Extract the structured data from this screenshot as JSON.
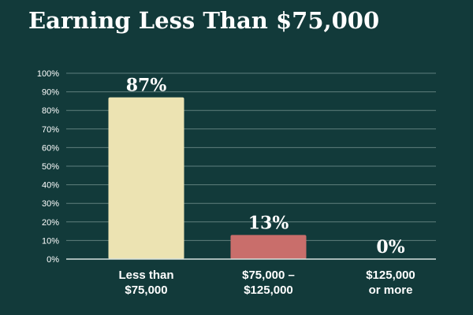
{
  "chart_data": {
    "type": "bar",
    "title": "Earning Less Than $75,000",
    "categories": [
      [
        "Less than",
        "$75,000"
      ],
      [
        "$75,000 –",
        "$125,000"
      ],
      [
        "$125,000",
        "or more"
      ]
    ],
    "values": [
      87,
      13,
      0
    ],
    "value_labels": [
      "87%",
      "13%",
      "0%"
    ],
    "ylim": [
      0,
      100
    ],
    "yticks": [
      "0%",
      "10%",
      "20%",
      "30%",
      "40%",
      "50%",
      "60%",
      "70%",
      "80%",
      "90%",
      "100%"
    ],
    "grid": true,
    "legend": "none",
    "colors": {
      "background": "#123a3a",
      "bars": [
        "#ece3b2",
        "#c96e6b",
        "#c96e6b"
      ],
      "gridline": "#5f7f7d",
      "baseline": "#d8e2e0",
      "text": "#ffffff"
    }
  }
}
